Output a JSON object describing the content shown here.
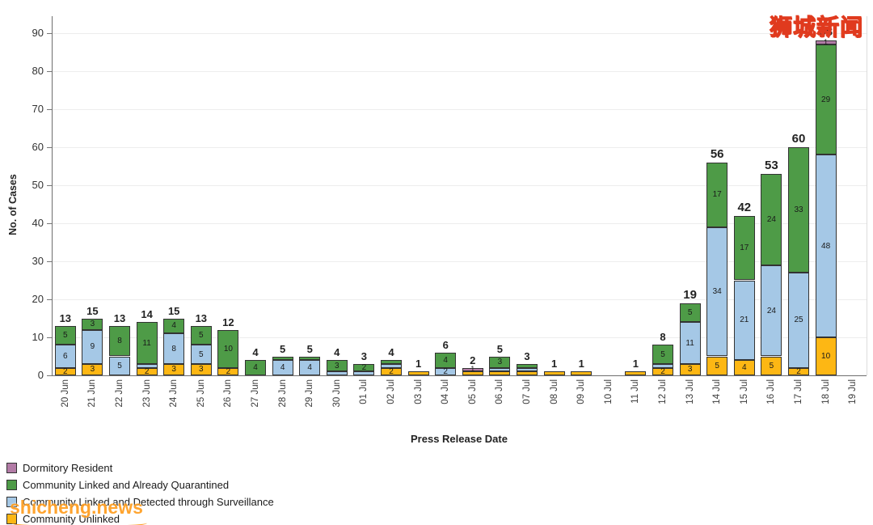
{
  "watermarks": {
    "top_right": "狮城新闻",
    "bottom_left": "shicheng.news"
  },
  "chart_data": {
    "type": "bar",
    "stacked": true,
    "title": "",
    "xlabel": "Press Release Date",
    "ylabel": "No. of Cases",
    "ylim": [
      0,
      90
    ],
    "yticks": [
      0,
      10,
      20,
      30,
      40,
      50,
      60,
      70,
      80,
      90
    ],
    "grid": true,
    "legend_position": "bottom-left",
    "categories": [
      "20 Jun",
      "21 Jun",
      "22 Jun",
      "23 Jun",
      "24 Jun",
      "25 Jun",
      "26 Jun",
      "27 Jun",
      "28 Jun",
      "29 Jun",
      "30 Jun",
      "01 Jul",
      "02 Jul",
      "03 Jul",
      "04 Jul",
      "05 Jul",
      "06 Jul",
      "07 Jul",
      "08 Jul",
      "09 Jul",
      "10 Jul",
      "11 Jul",
      "12 Jul",
      "13 Jul",
      "14 Jul",
      "15 Jul",
      "16 Jul",
      "17 Jul",
      "18 Jul",
      "19 Jul"
    ],
    "series": [
      {
        "name": "Community Unlinked",
        "color": "#fdb714",
        "values": [
          2,
          3,
          0,
          2,
          3,
          3,
          2,
          0,
          0,
          0,
          0,
          0,
          2,
          1,
          0,
          1,
          1,
          1,
          1,
          1,
          0,
          1,
          2,
          3,
          5,
          4,
          5,
          2,
          10,
          0
        ]
      },
      {
        "name": "Community Linked and Detected through Surveillance",
        "color": "#a5c8e6",
        "values": [
          6,
          9,
          5,
          1,
          8,
          5,
          0,
          0,
          4,
          4,
          1,
          1,
          1,
          0,
          2,
          0,
          1,
          1,
          0,
          0,
          0,
          0,
          1,
          11,
          34,
          21,
          24,
          25,
          48,
          0
        ]
      },
      {
        "name": "Community Linked and Already Quarantined",
        "color": "#4e9b47",
        "values": [
          5,
          3,
          8,
          11,
          4,
          5,
          10,
          4,
          1,
          1,
          3,
          2,
          1,
          0,
          4,
          0,
          3,
          1,
          0,
          0,
          0,
          0,
          5,
          5,
          17,
          17,
          24,
          33,
          29,
          0
        ]
      },
      {
        "name": "Dormitory Resident",
        "color": "#b27ba6",
        "values": [
          0,
          0,
          0,
          0,
          0,
          0,
          0,
          0,
          0,
          0,
          0,
          0,
          0,
          0,
          0,
          1,
          0,
          0,
          0,
          0,
          0,
          0,
          0,
          0,
          0,
          0,
          0,
          0,
          1,
          0
        ]
      }
    ],
    "totals": [
      13,
      15,
      13,
      14,
      15,
      13,
      12,
      4,
      5,
      5,
      4,
      3,
      4,
      1,
      6,
      2,
      5,
      3,
      1,
      1,
      0,
      1,
      8,
      19,
      56,
      42,
      53,
      60,
      88,
      0
    ],
    "legend_order": [
      "Dormitory Resident",
      "Community Linked and Already Quarantined",
      "Community Linked and Detected through Surveillance",
      "Community Unlinked"
    ]
  }
}
